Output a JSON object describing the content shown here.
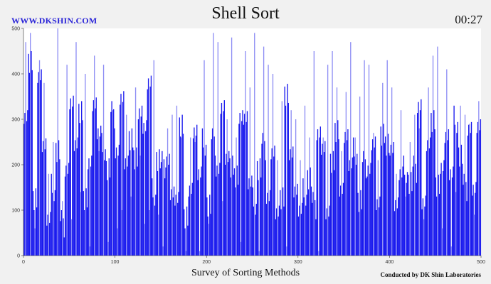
{
  "header": {
    "site": "WWW.DKSHIN.COM",
    "title": "Shell Sort",
    "timer": "00:27"
  },
  "footer": {
    "subtitle": "Survey of Sorting Methods",
    "credit": "Conducted by DK Shin Laboratories"
  },
  "colors": {
    "bar_dark": "#1a1aee",
    "bar_light": "#8e8ef4",
    "background": "#f1f1f1",
    "plot_bg": "#ffffff"
  },
  "chart_data": {
    "type": "bar",
    "title": "Shell Sort",
    "xlabel": "",
    "ylabel": "",
    "xlim": [
      0,
      500
    ],
    "ylim": [
      0,
      500
    ],
    "x_ticks": [
      0,
      100,
      200,
      300,
      400,
      500
    ],
    "y_ticks": [
      0,
      100,
      200,
      300,
      400,
      500
    ],
    "grid": false,
    "n_bars": 500,
    "value_pairs_note": "each pair is [dark-bar value, light-bar value] for consecutive 5-index groups",
    "groups": [
      [
        320,
        470
      ],
      [
        420,
        490
      ],
      [
        130,
        60
      ],
      [
        380,
        430
      ],
      [
        240,
        380
      ],
      [
        90,
        180
      ],
      [
        150,
        250
      ],
      [
        230,
        500
      ],
      [
        70,
        120
      ],
      [
        180,
        420
      ],
      [
        340,
        80
      ],
      [
        260,
        470
      ],
      [
        310,
        140
      ],
      [
        130,
        400
      ],
      [
        190,
        20
      ],
      [
        330,
        440
      ],
      [
        280,
        230
      ],
      [
        240,
        420
      ],
      [
        190,
        30
      ],
      [
        310,
        320
      ],
      [
        220,
        60
      ],
      [
        350,
        100
      ],
      [
        220,
        310
      ],
      [
        250,
        130
      ],
      [
        220,
        370
      ],
      [
        300,
        220
      ],
      [
        280,
        70
      ],
      [
        390,
        100
      ],
      [
        140,
        430
      ],
      [
        210,
        90
      ],
      [
        200,
        20
      ],
      [
        200,
        280
      ],
      [
        140,
        310
      ],
      [
        140,
        330
      ],
      [
        280,
        260
      ],
      [
        90,
        10
      ],
      [
        130,
        260
      ],
      [
        270,
        250
      ],
      [
        190,
        10
      ],
      [
        250,
        430
      ],
      [
        110,
        70
      ],
      [
        250,
        490
      ],
      [
        180,
        470
      ],
      [
        330,
        120
      ],
      [
        230,
        300
      ],
      [
        190,
        480
      ],
      [
        180,
        260
      ],
      [
        290,
        30
      ],
      [
        300,
        450
      ],
      [
        170,
        370
      ],
      [
        120,
        490
      ],
      [
        190,
        10
      ],
      [
        240,
        460
      ],
      [
        120,
        420
      ],
      [
        230,
        400
      ],
      [
        110,
        210
      ],
      [
        120,
        340
      ],
      [
        360,
        20
      ],
      [
        210,
        320
      ],
      [
        140,
        300
      ],
      [
        110,
        210
      ],
      [
        140,
        330
      ],
      [
        170,
        260
      ],
      [
        110,
        450
      ],
      [
        260,
        10
      ],
      [
        240,
        260
      ],
      [
        110,
        420
      ],
      [
        200,
        450
      ],
      [
        280,
        370
      ],
      [
        130,
        230
      ],
      [
        260,
        360
      ],
      [
        210,
        470
      ],
      [
        230,
        260
      ],
      [
        120,
        350
      ],
      [
        200,
        430
      ],
      [
        180,
        420
      ],
      [
        250,
        270
      ],
      [
        130,
        210
      ],
      [
        260,
        380
      ],
      [
        250,
        430
      ],
      [
        220,
        370
      ],
      [
        110,
        180
      ],
      [
        190,
        320
      ],
      [
        190,
        130
      ],
      [
        160,
        250
      ],
      [
        190,
        310
      ],
      [
        320,
        280
      ],
      [
        120,
        80
      ],
      [
        260,
        370
      ],
      [
        290,
        440
      ],
      [
        160,
        460
      ],
      [
        180,
        60
      ],
      [
        260,
        410
      ],
      [
        190,
        20
      ],
      [
        300,
        140
      ],
      [
        220,
        330
      ],
      [
        150,
        310
      ],
      [
        270,
        290
      ],
      [
        150,
        90
      ],
      [
        300,
        340
      ]
    ]
  }
}
